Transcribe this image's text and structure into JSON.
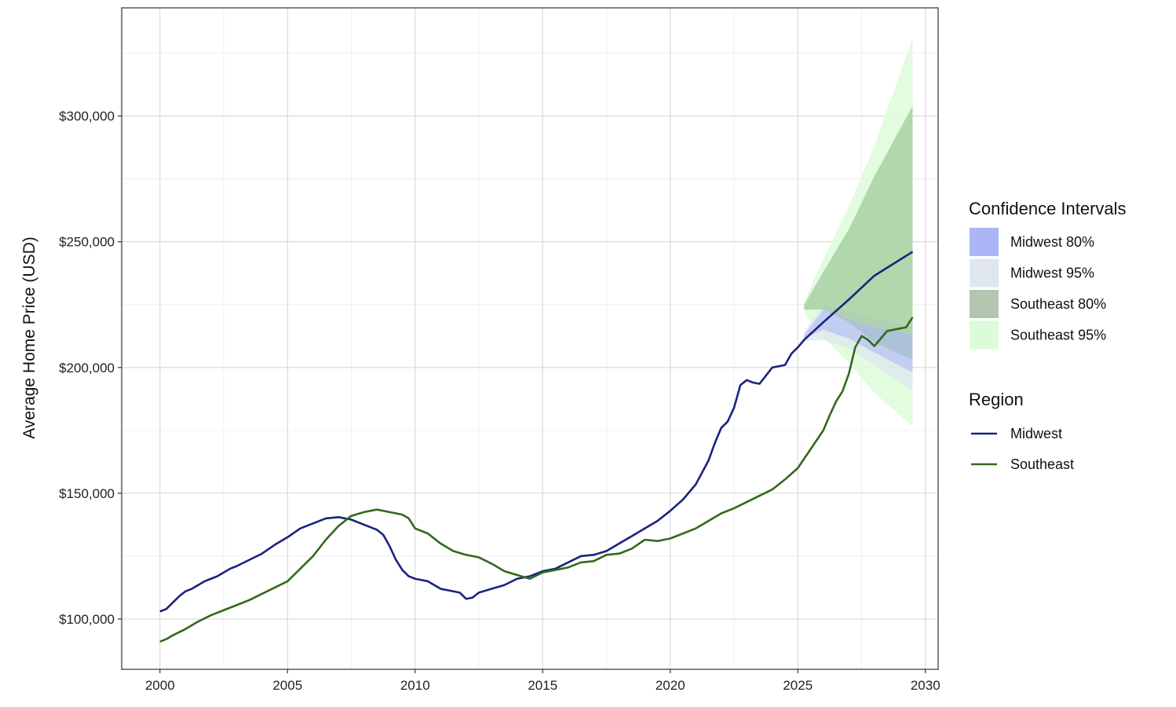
{
  "chart_data": {
    "type": "line",
    "title": "",
    "xlabel": "",
    "ylabel": "Average Home Price (USD)",
    "xlim": [
      1998.5,
      2030.5
    ],
    "ylim": [
      80000,
      343000
    ],
    "x_ticks": [
      {
        "value": 2000,
        "label": "2000"
      },
      {
        "value": 2005,
        "label": "2005"
      },
      {
        "value": 2010,
        "label": "2010"
      },
      {
        "value": 2015,
        "label": "2015"
      },
      {
        "value": 2020,
        "label": "2020"
      },
      {
        "value": 2025,
        "label": "2025"
      },
      {
        "value": 2030,
        "label": "2030"
      }
    ],
    "y_ticks": [
      {
        "value": 100000,
        "label": "$100,000"
      },
      {
        "value": 150000,
        "label": "$150,000"
      },
      {
        "value": 200000,
        "label": "$200,000"
      },
      {
        "value": 250000,
        "label": "$250,000"
      },
      {
        "value": 300000,
        "label": "$300,000"
      }
    ],
    "grid": true,
    "legend_position": "right",
    "series": [
      {
        "name": "Midwest",
        "color": "#1a237e",
        "points": [
          [
            2000.0,
            103000
          ],
          [
            2000.25,
            104000
          ],
          [
            2000.5,
            106500
          ],
          [
            2000.75,
            109000
          ],
          [
            2001.0,
            111000
          ],
          [
            2001.25,
            112000
          ],
          [
            2001.5,
            113500
          ],
          [
            2001.75,
            115000
          ],
          [
            2002.0,
            116000
          ],
          [
            2002.25,
            117000
          ],
          [
            2002.5,
            118500
          ],
          [
            2002.75,
            120000
          ],
          [
            2003.0,
            121000
          ],
          [
            2003.5,
            123500
          ],
          [
            2004.0,
            126000
          ],
          [
            2004.5,
            129500
          ],
          [
            2005.0,
            132500
          ],
          [
            2005.5,
            136000
          ],
          [
            2006.0,
            138000
          ],
          [
            2006.5,
            140000
          ],
          [
            2007.0,
            140500
          ],
          [
            2007.5,
            139500
          ],
          [
            2008.0,
            137500
          ],
          [
            2008.5,
            135500
          ],
          [
            2008.75,
            133500
          ],
          [
            2009.0,
            129000
          ],
          [
            2009.25,
            123500
          ],
          [
            2009.5,
            119500
          ],
          [
            2009.75,
            117000
          ],
          [
            2010.0,
            116000
          ],
          [
            2010.5,
            115000
          ],
          [
            2011.0,
            112000
          ],
          [
            2011.5,
            111000
          ],
          [
            2011.75,
            110500
          ],
          [
            2012.0,
            108000
          ],
          [
            2012.25,
            108500
          ],
          [
            2012.5,
            110500
          ],
          [
            2013.0,
            112000
          ],
          [
            2013.5,
            113500
          ],
          [
            2014.0,
            116000
          ],
          [
            2014.5,
            117000
          ],
          [
            2015.0,
            119000
          ],
          [
            2015.5,
            120000
          ],
          [
            2016.0,
            122500
          ],
          [
            2016.5,
            125000
          ],
          [
            2017.0,
            125500
          ],
          [
            2017.5,
            127000
          ],
          [
            2018.0,
            130000
          ],
          [
            2018.5,
            133000
          ],
          [
            2019.0,
            136000
          ],
          [
            2019.5,
            139000
          ],
          [
            2020.0,
            143000
          ],
          [
            2020.5,
            147500
          ],
          [
            2021.0,
            153500
          ],
          [
            2021.5,
            163000
          ],
          [
            2021.75,
            170000
          ],
          [
            2022.0,
            176000
          ],
          [
            2022.25,
            178500
          ],
          [
            2022.5,
            184000
          ],
          [
            2022.75,
            193000
          ],
          [
            2023.0,
            195000
          ],
          [
            2023.25,
            194000
          ],
          [
            2023.5,
            193500
          ],
          [
            2024.0,
            200000
          ],
          [
            2024.5,
            201000
          ],
          [
            2024.75,
            205500
          ],
          [
            2025.0,
            208000
          ],
          [
            2025.25,
            211000
          ],
          [
            2026.0,
            218000
          ],
          [
            2027.0,
            227000
          ],
          [
            2028.0,
            236500
          ],
          [
            2029.5,
            246000
          ]
        ]
      },
      {
        "name": "Southeast",
        "color": "#33691e",
        "points": [
          [
            2000.0,
            91000
          ],
          [
            2000.25,
            92000
          ],
          [
            2000.5,
            93500
          ],
          [
            2001.0,
            96000
          ],
          [
            2001.5,
            99000
          ],
          [
            2002.0,
            101500
          ],
          [
            2002.5,
            103500
          ],
          [
            2003.0,
            105500
          ],
          [
            2003.5,
            107500
          ],
          [
            2004.0,
            110000
          ],
          [
            2004.5,
            112500
          ],
          [
            2005.0,
            115000
          ],
          [
            2005.5,
            120000
          ],
          [
            2006.0,
            125000
          ],
          [
            2006.5,
            131500
          ],
          [
            2007.0,
            137000
          ],
          [
            2007.5,
            141000
          ],
          [
            2008.0,
            142500
          ],
          [
            2008.5,
            143500
          ],
          [
            2009.0,
            142500
          ],
          [
            2009.5,
            141500
          ],
          [
            2009.75,
            140000
          ],
          [
            2010.0,
            136000
          ],
          [
            2010.5,
            134000
          ],
          [
            2011.0,
            130000
          ],
          [
            2011.5,
            127000
          ],
          [
            2012.0,
            125500
          ],
          [
            2012.5,
            124500
          ],
          [
            2013.0,
            122000
          ],
          [
            2013.5,
            119000
          ],
          [
            2014.0,
            117500
          ],
          [
            2014.5,
            116000
          ],
          [
            2015.0,
            118500
          ],
          [
            2015.5,
            119500
          ],
          [
            2016.0,
            120500
          ],
          [
            2016.5,
            122500
          ],
          [
            2017.0,
            123000
          ],
          [
            2017.5,
            125500
          ],
          [
            2018.0,
            126000
          ],
          [
            2018.5,
            128000
          ],
          [
            2019.0,
            131500
          ],
          [
            2019.5,
            131000
          ],
          [
            2020.0,
            132000
          ],
          [
            2020.5,
            134000
          ],
          [
            2021.0,
            136000
          ],
          [
            2021.5,
            139000
          ],
          [
            2022.0,
            142000
          ],
          [
            2022.5,
            144000
          ],
          [
            2023.0,
            146500
          ],
          [
            2023.5,
            149000
          ],
          [
            2024.0,
            151500
          ],
          [
            2024.5,
            155500
          ],
          [
            2025.0,
            160000
          ],
          [
            2025.5,
            167500
          ],
          [
            2026.0,
            175000
          ],
          [
            2026.25,
            181000
          ],
          [
            2026.5,
            186500
          ],
          [
            2026.75,
            190500
          ],
          [
            2027.0,
            197500
          ],
          [
            2027.25,
            208000
          ],
          [
            2027.5,
            212500
          ],
          [
            2027.75,
            211000
          ],
          [
            2028.0,
            208500
          ],
          [
            2028.5,
            214500
          ],
          [
            2029.0,
            215500
          ],
          [
            2029.25,
            216000
          ],
          [
            2029.5,
            220000
          ]
        ]
      }
    ],
    "forecast": {
      "Midwest": {
        "x": [
          2025.25,
          2026.0,
          2027.0,
          2028.0,
          2029.5
        ],
        "upper95": [
          214000,
          225000,
          222500,
          219500,
          216000
        ],
        "lower95": [
          210500,
          211000,
          207500,
          201000,
          191000
        ],
        "upper80": [
          213000,
          223000,
          219000,
          216000,
          213000
        ],
        "lower80": [
          211500,
          215000,
          211500,
          206000,
          198000
        ]
      },
      "Southeast": {
        "x": [
          2025.25,
          2026.0,
          2027.0,
          2028.0,
          2029.5
        ],
        "upper95": [
          226000,
          243000,
          264000,
          288000,
          331000
        ],
        "lower95": [
          221500,
          212000,
          202000,
          190000,
          176500
        ],
        "upper80": [
          225000,
          238000,
          255000,
          276000,
          304000
        ],
        "lower80": [
          223000,
          223000,
          218000,
          210000,
          203000
        ]
      }
    },
    "legend": {
      "ci_title": "Confidence Intervals",
      "ci_items": [
        {
          "label": "Midwest 80%",
          "color": "#aab6f5"
        },
        {
          "label": "Midwest 95%",
          "color": "#dfe6ef"
        },
        {
          "label": "Southeast 80%",
          "color": "#b3c7b0"
        },
        {
          "label": "Southeast 95%",
          "color": "#dcfbd8"
        }
      ],
      "region_title": "Region",
      "region_items": [
        {
          "label": "Midwest",
          "color": "#1a237e"
        },
        {
          "label": "Southeast",
          "color": "#33691e"
        }
      ]
    }
  }
}
